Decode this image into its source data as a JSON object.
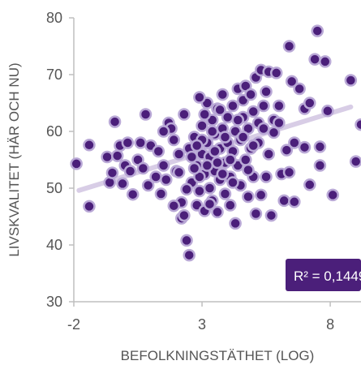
{
  "chart_data": {
    "type": "scatter",
    "title": "",
    "xlabel": "BEFOLKNINGSTÄTHET (LOG)",
    "ylabel": "LIVSKVALITET (HÄR OCH NU)",
    "xlim": [
      -2,
      9.2
    ],
    "ylim": [
      30,
      80
    ],
    "xticks": [
      "-2",
      "3",
      "8"
    ],
    "xtick_values": [
      -2,
      3,
      8
    ],
    "yticks": [
      "30",
      "40",
      "50",
      "60",
      "70",
      "80"
    ],
    "ytick_values": [
      30,
      40,
      50,
      60,
      70,
      80
    ],
    "grid": false,
    "annotation": "R² = 0,1449",
    "colors": {
      "marker_fill": "#4b1f7a",
      "marker_edge": "#b9a8d6",
      "trendline": "#d8cde6",
      "annotation_bg": "#4b1f7a",
      "axis": "#bfbfbf",
      "text": "#555555"
    },
    "trendline": {
      "x": [
        -1.8,
        8.8
      ],
      "y": [
        49.6,
        64.3
      ]
    },
    "points": [
      [
        -1.9,
        54.3
      ],
      [
        -1.4,
        57.6
      ],
      [
        -1.4,
        46.8
      ],
      [
        -0.7,
        55.5
      ],
      [
        -0.6,
        51.0
      ],
      [
        -0.5,
        52.7
      ],
      [
        -0.4,
        61.7
      ],
      [
        -0.3,
        55.7
      ],
      [
        -0.2,
        57.5
      ],
      [
        -0.1,
        50.8
      ],
      [
        0.0,
        54.0
      ],
      [
        0.1,
        58.0
      ],
      [
        0.2,
        53.0
      ],
      [
        0.3,
        48.9
      ],
      [
        0.5,
        55.0
      ],
      [
        0.6,
        58.0
      ],
      [
        0.7,
        53.5
      ],
      [
        0.8,
        63.0
      ],
      [
        0.9,
        50.5
      ],
      [
        1.0,
        57.5
      ],
      [
        1.2,
        52.0
      ],
      [
        1.3,
        56.5
      ],
      [
        1.4,
        49.0
      ],
      [
        1.5,
        54.0
      ],
      [
        1.6,
        51.5
      ],
      [
        1.7,
        61.5
      ],
      [
        1.8,
        60.5
      ],
      [
        1.9,
        58.5
      ],
      [
        2.0,
        53.0
      ],
      [
        2.1,
        56.0
      ],
      [
        2.2,
        47.5
      ],
      [
        2.2,
        44.7
      ],
      [
        2.3,
        45.2
      ],
      [
        2.3,
        63.0
      ],
      [
        2.4,
        40.8
      ],
      [
        2.5,
        38.2
      ],
      [
        2.5,
        57.0
      ],
      [
        2.6,
        51.0
      ],
      [
        2.7,
        59.0
      ],
      [
        2.8,
        47.0
      ],
      [
        2.8,
        54.0
      ],
      [
        2.9,
        49.5
      ],
      [
        3.0,
        56.0
      ],
      [
        3.0,
        61.0
      ],
      [
        3.1,
        46.0
      ],
      [
        3.1,
        52.5
      ],
      [
        3.2,
        58.0
      ],
      [
        3.2,
        65.0
      ],
      [
        3.3,
        50.0
      ],
      [
        3.3,
        55.5
      ],
      [
        3.4,
        62.0
      ],
      [
        3.4,
        47.8
      ],
      [
        3.5,
        53.0
      ],
      [
        3.5,
        59.5
      ],
      [
        3.6,
        45.8
      ],
      [
        3.6,
        64.0
      ],
      [
        3.7,
        51.5
      ],
      [
        3.7,
        57.0
      ],
      [
        3.8,
        60.5
      ],
      [
        3.8,
        66.5
      ],
      [
        3.9,
        49.0
      ],
      [
        3.9,
        54.5
      ],
      [
        4.0,
        62.5
      ],
      [
        4.0,
        58.0
      ],
      [
        4.1,
        47.0
      ],
      [
        4.1,
        52.0
      ],
      [
        4.2,
        56.5
      ],
      [
        4.2,
        64.5
      ],
      [
        4.3,
        60.0
      ],
      [
        4.3,
        43.8
      ],
      [
        4.4,
        54.0
      ],
      [
        4.4,
        67.5
      ],
      [
        4.5,
        50.5
      ],
      [
        4.5,
        58.5
      ],
      [
        4.6,
        62.5
      ],
      [
        4.6,
        65.5
      ],
      [
        4.7,
        55.0
      ],
      [
        4.7,
        68.0
      ],
      [
        4.8,
        48.5
      ],
      [
        4.8,
        60.5
      ],
      [
        4.9,
        57.0
      ],
      [
        4.9,
        66.5
      ],
      [
        5.0,
        63.5
      ],
      [
        5.0,
        52.0
      ],
      [
        5.1,
        69.5
      ],
      [
        5.1,
        45.5
      ],
      [
        5.2,
        58.0
      ],
      [
        5.2,
        61.5
      ],
      [
        5.3,
        70.8
      ],
      [
        5.3,
        48.8
      ],
      [
        5.4,
        64.5
      ],
      [
        5.5,
        52.0
      ],
      [
        5.5,
        67.0
      ],
      [
        5.6,
        70.5
      ],
      [
        5.6,
        56.0
      ],
      [
        5.7,
        45.2
      ],
      [
        5.8,
        62.0
      ],
      [
        5.9,
        70.3
      ],
      [
        6.0,
        64.5
      ],
      [
        6.1,
        52.5
      ],
      [
        6.2,
        47.8
      ],
      [
        6.4,
        75.0
      ],
      [
        6.4,
        52.8
      ],
      [
        6.5,
        68.8
      ],
      [
        6.6,
        47.6
      ],
      [
        6.6,
        58.0
      ],
      [
        6.8,
        67.5
      ],
      [
        7.0,
        64.0
      ],
      [
        7.0,
        57.2
      ],
      [
        7.2,
        65.0
      ],
      [
        7.2,
        50.6
      ],
      [
        7.4,
        72.7
      ],
      [
        7.5,
        77.7
      ],
      [
        7.6,
        57.3
      ],
      [
        7.6,
        54.0
      ],
      [
        7.8,
        72.3
      ],
      [
        7.9,
        63.6
      ],
      [
        8.1,
        48.8
      ],
      [
        8.8,
        69.0
      ],
      [
        9.0,
        54.7
      ],
      [
        9.2,
        61.2
      ],
      [
        2.6,
        55.5
      ],
      [
        2.9,
        52.0
      ],
      [
        3.2,
        54.0
      ],
      [
        3.5,
        56.5
      ],
      [
        3.8,
        52.5
      ],
      [
        4.1,
        55.0
      ],
      [
        3.0,
        58.5
      ],
      [
        3.4,
        60.0
      ],
      [
        2.7,
        53.5
      ],
      [
        3.6,
        54.5
      ],
      [
        3.9,
        59.0
      ],
      [
        4.4,
        62.0
      ],
      [
        2.8,
        57.5
      ],
      [
        3.1,
        63.0
      ],
      [
        4.6,
        59.0
      ],
      [
        3.3,
        47.2
      ],
      [
        2.4,
        49.8
      ],
      [
        1.9,
        46.9
      ],
      [
        5.8,
        59.8
      ],
      [
        6.0,
        61.5
      ],
      [
        5.4,
        60.5
      ],
      [
        4.8,
        53.2
      ],
      [
        2.9,
        66.0
      ],
      [
        3.7,
        63.8
      ],
      [
        4.2,
        51.0
      ],
      [
        1.5,
        60.0
      ],
      [
        2.1,
        52.8
      ],
      [
        5.0,
        57.5
      ],
      [
        6.3,
        56.7
      ]
    ]
  }
}
